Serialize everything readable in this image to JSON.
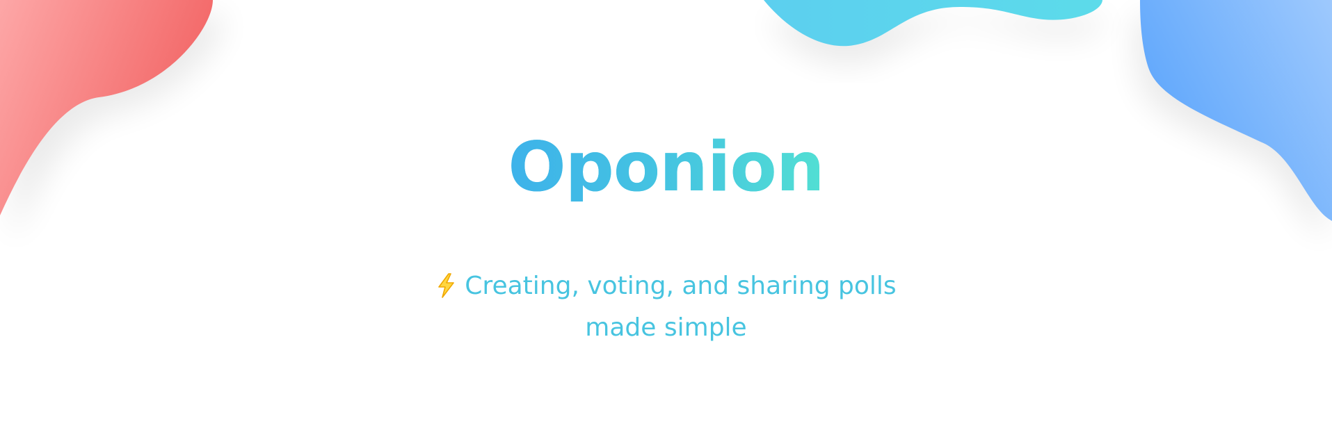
{
  "hero": {
    "title": "Oponion",
    "tagline_line1": "Creating, voting, and sharing polls",
    "tagline_line2": "made simple",
    "tagline_icon": "lightning-bolt-icon"
  },
  "colors": {
    "title_start": "#3db2ea",
    "title_end": "#52dfd3",
    "tagline": "#47c4e0",
    "blob_red_start": "#f45d5d",
    "blob_red_end": "#fca3a3",
    "blob_cyan": "#5bd3ef",
    "blob_blue_start": "#5aa5fc",
    "blob_blue_end": "#9cc8fd",
    "bolt": "#f6b400"
  }
}
